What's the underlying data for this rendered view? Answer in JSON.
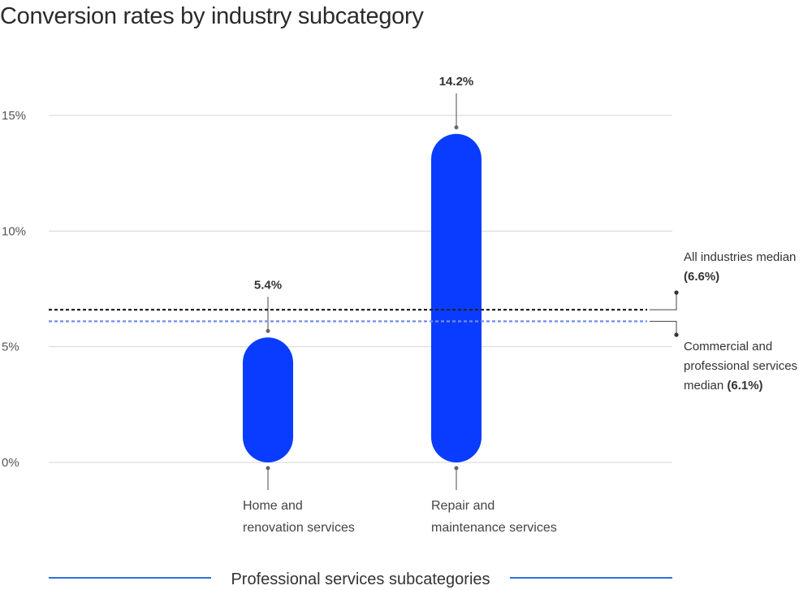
{
  "chart_data": {
    "type": "bar",
    "title": "Conversion rates by industry subcategory",
    "categories": [
      "Home and renovation services",
      "Repair and maintenance services"
    ],
    "category_lines": [
      [
        "Home and",
        "renovation services"
      ],
      [
        "Repair and",
        "maintenance services"
      ]
    ],
    "values": [
      5.4,
      14.2
    ],
    "value_labels": [
      "5.4%",
      "14.2%"
    ],
    "ylim": [
      0,
      15
    ],
    "yticks": [
      0,
      5,
      10,
      15
    ],
    "ytick_labels": [
      "0%",
      "5%",
      "10%",
      "15%"
    ],
    "grid": true,
    "bar_color": "#0a3cff",
    "reference_lines": [
      {
        "value": 6.6,
        "color": "#222222",
        "style": "dotted",
        "label_lines": [
          {
            "text": "All industries median",
            "bold": ""
          },
          {
            "text": "",
            "bold": "(6.6%)"
          }
        ]
      },
      {
        "value": 6.1,
        "color": "#6f8cf2",
        "style": "dotted",
        "label_lines": [
          {
            "text": "Commercial and",
            "bold": ""
          },
          {
            "text": "professional services",
            "bold": ""
          },
          {
            "text": "median ",
            "bold": "(6.1%)"
          }
        ]
      }
    ],
    "xlabel": "Professional services subcategories",
    "xlabel_rule_color": "#2f6fe0"
  }
}
